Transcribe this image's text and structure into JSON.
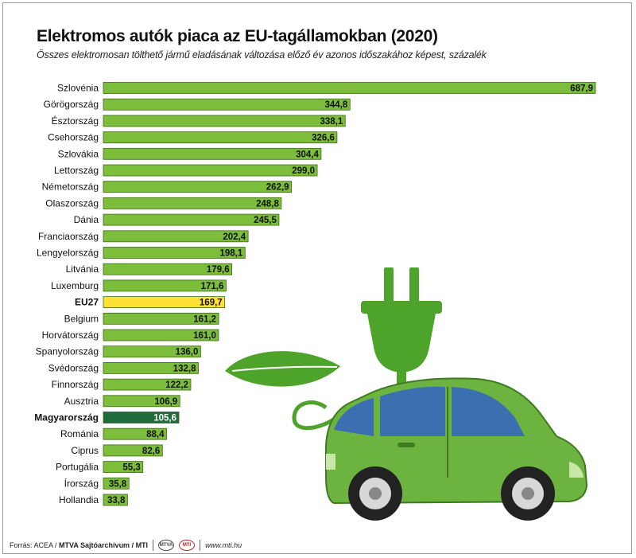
{
  "header": {
    "title": "Elektromos autók piaca az EU-tagállamokban (2020)",
    "subtitle": "Összes elektromosan tölthető jármű eladásának változása előző év azonos időszakához képest, százalék"
  },
  "footer": {
    "source_prefix": "Forrás: ACEA /",
    "source_bold": "MTVA Sajtóarchívum / MTI",
    "logo1_text": "MTVA",
    "logo2_text": "MTI",
    "url": "www.mti.hu"
  },
  "colors": {
    "bar": "#7cbd3c",
    "bar_border": "#3f6a14",
    "eu_bar": "#ffe135",
    "hu_bar": "#1f6b3a",
    "car_body": "#6db33f",
    "plug": "#4ea32a"
  },
  "chart_data": {
    "type": "bar",
    "orientation": "horizontal",
    "title": "Elektromos autók piaca az EU-tagállamokban (2020)",
    "subtitle": "Összes elektromosan tölthető jármű eladásának változása előző év azonos időszakához képest, százalék",
    "categories": [
      "Szlovénia",
      "Görögország",
      "Észtország",
      "Csehország",
      "Szlovákia",
      "Lettország",
      "Németország",
      "Olaszország",
      "Dánia",
      "Franciaország",
      "Lengyelország",
      "Litvánia",
      "Luxemburg",
      "EU27",
      "Belgium",
      "Horvátország",
      "Spanyolország",
      "Svédország",
      "Finnország",
      "Ausztria",
      "Magyarország",
      "Románia",
      "Ciprus",
      "Portugália",
      "Írország",
      "Hollandia"
    ],
    "values": [
      687.9,
      344.8,
      338.1,
      326.6,
      304.4,
      299.0,
      262.9,
      248.8,
      245.5,
      202.4,
      198.1,
      179.6,
      171.6,
      169.7,
      161.2,
      161.0,
      136.0,
      132.8,
      122.2,
      106.9,
      105.6,
      88.4,
      82.6,
      55.3,
      35.8,
      33.8
    ],
    "value_labels": [
      "687,9",
      "344,8",
      "338,1",
      "326,6",
      "304,4",
      "299,0",
      "262,9",
      "248,8",
      "245,5",
      "202,4",
      "198,1",
      "179,6",
      "171,6",
      "169,7",
      "161,2",
      "161,0",
      "136,0",
      "132,8",
      "122,2",
      "106,9",
      "105,6",
      "88,4",
      "82,6",
      "55,3",
      "35,8",
      "33,8"
    ],
    "highlight": {
      "EU27": "eu",
      "Magyarország": "hu"
    },
    "xlim": [
      0,
      700
    ],
    "grid": false
  }
}
